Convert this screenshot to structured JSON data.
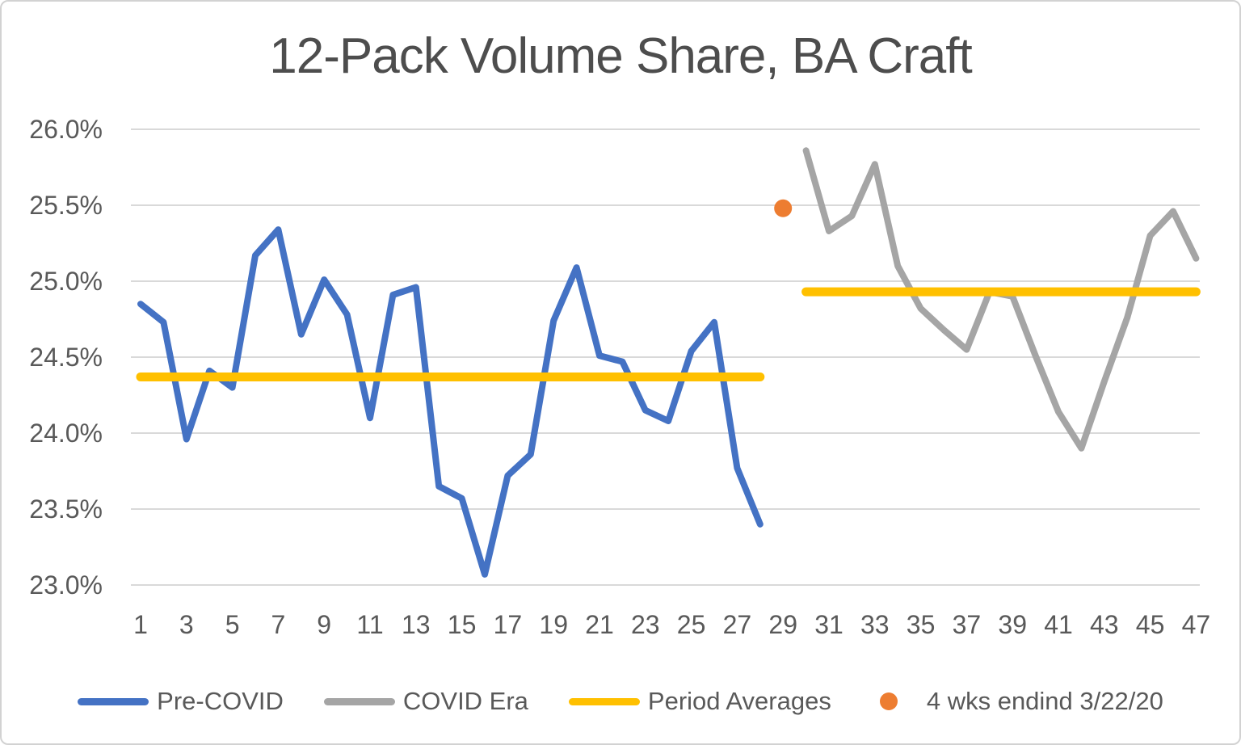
{
  "title": "12-Pack Volume Share, BA Craft",
  "colors": {
    "pre_covid": "#4472C4",
    "covid_era": "#A5A5A5",
    "period_averages": "#FFC000",
    "highlight": "#ED7D31",
    "grid": "#D9D9D9",
    "text": "#595959",
    "title_text": "#4D4D4D"
  },
  "legend": [
    {
      "label": "Pre-COVID",
      "swatch": "line",
      "color": "#4472C4"
    },
    {
      "label": "COVID Era",
      "swatch": "line",
      "color": "#A5A5A5"
    },
    {
      "label": "Period Averages",
      "swatch": "line",
      "color": "#FFC000"
    },
    {
      "label": "4 wks endind 3/22/20",
      "swatch": "dot",
      "color": "#ED7D31"
    }
  ],
  "chart_data": {
    "type": "line",
    "title": "12-Pack Volume Share, BA Craft",
    "xlabel": "",
    "ylabel": "",
    "ylim": [
      23.0,
      26.0
    ],
    "grid": "horizontal",
    "legend_position": "bottom",
    "y_ticks": [
      "26.0%",
      "25.5%",
      "25.0%",
      "24.5%",
      "24.0%",
      "23.5%",
      "23.0%"
    ],
    "x_ticks": [
      1,
      3,
      5,
      7,
      9,
      11,
      13,
      15,
      17,
      19,
      21,
      23,
      25,
      27,
      29,
      31,
      33,
      35,
      37,
      39,
      41,
      43,
      45,
      47
    ],
    "series": [
      {
        "name": "Pre-COVID",
        "type": "line",
        "color": "#4472C4",
        "x": [
          1,
          2,
          3,
          4,
          5,
          6,
          7,
          8,
          9,
          10,
          11,
          12,
          13,
          14,
          15,
          16,
          17,
          18,
          19,
          20,
          21,
          22,
          23,
          24,
          25,
          26,
          27,
          28
        ],
        "values": [
          24.85,
          24.73,
          23.96,
          24.41,
          24.3,
          25.17,
          25.34,
          24.65,
          25.01,
          24.78,
          24.1,
          24.91,
          24.96,
          23.65,
          23.57,
          23.07,
          23.72,
          23.86,
          24.74,
          25.09,
          24.51,
          24.47,
          24.15,
          24.08,
          24.54,
          24.73,
          23.77,
          23.4
        ]
      },
      {
        "name": "COVID Era",
        "type": "line",
        "color": "#A5A5A5",
        "x": [
          30,
          31,
          32,
          33,
          34,
          35,
          36,
          37,
          38,
          39,
          40,
          41,
          42,
          43,
          44,
          45,
          46,
          47
        ],
        "values": [
          25.86,
          25.33,
          25.43,
          25.77,
          25.1,
          24.82,
          24.68,
          24.55,
          24.93,
          24.9,
          24.51,
          24.14,
          23.9,
          24.34,
          24.76,
          25.3,
          25.46,
          25.15
        ]
      },
      {
        "name": "Period Averages",
        "type": "hline_segments",
        "color": "#FFC000",
        "segments": [
          {
            "x_start": 1,
            "x_end": 28,
            "value": 24.37
          },
          {
            "x_start": 30,
            "x_end": 47,
            "value": 24.93
          }
        ]
      },
      {
        "name": "4 wks endind 3/22/20",
        "type": "point",
        "color": "#ED7D31",
        "x": [
          29
        ],
        "values": [
          25.48
        ]
      }
    ]
  }
}
